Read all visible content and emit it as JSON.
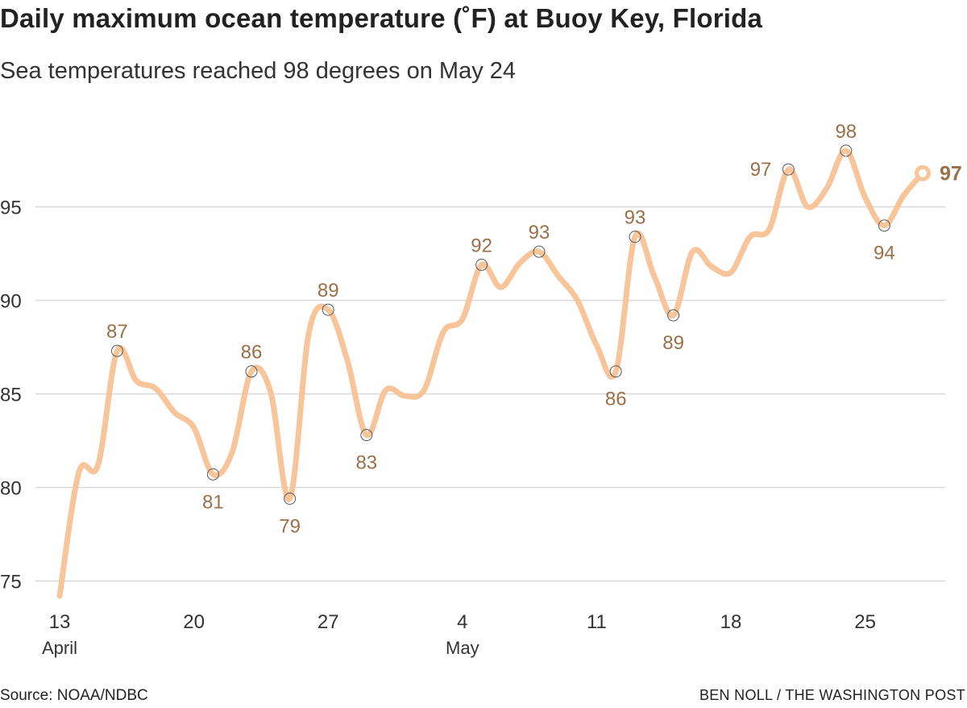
{
  "header": {
    "title": "Daily maximum ocean temperature (˚F) at Buoy Key, Florida",
    "subtitle": "Sea temperatures reached 98 degrees on May 24"
  },
  "footer": {
    "source": "Source: NOAA/NDBC",
    "credit": "BEN NOLL / THE WASHINGTON POST"
  },
  "colors": {
    "line": "#f8c49a",
    "label": "#9a7048",
    "grid": "#d9d9d9"
  },
  "chart_data": {
    "type": "line",
    "title": "Daily maximum ocean temperature (˚F) at Buoy Key, Florida",
    "subtitle": "Sea temperatures reached 98 degrees on May 24",
    "ylim": [
      73.5,
      99.5
    ],
    "xlim": [
      "2024-04-13",
      "2024-05-30"
    ],
    "yticks": [
      75,
      80,
      85,
      90,
      95
    ],
    "xticks": [
      {
        "date": "2024-04-13",
        "label": "13",
        "sublabel": "April"
      },
      {
        "date": "2024-04-20",
        "label": "20",
        "sublabel": ""
      },
      {
        "date": "2024-04-27",
        "label": "27",
        "sublabel": ""
      },
      {
        "date": "2024-05-04",
        "label": "4",
        "sublabel": "May"
      },
      {
        "date": "2024-05-11",
        "label": "11",
        "sublabel": ""
      },
      {
        "date": "2024-05-18",
        "label": "18",
        "sublabel": ""
      },
      {
        "date": "2024-05-25",
        "label": "25",
        "sublabel": ""
      }
    ],
    "grid": true,
    "points": [
      {
        "x": "2024-04-13",
        "y": 74.2
      },
      {
        "x": "2024-04-14",
        "y": 80.8
      },
      {
        "x": "2024-04-15",
        "y": 81.2
      },
      {
        "x": "2024-04-16",
        "y": 87.3,
        "label": "87",
        "pos": "above"
      },
      {
        "x": "2024-04-17",
        "y": 85.7
      },
      {
        "x": "2024-04-18",
        "y": 85.3
      },
      {
        "x": "2024-04-19",
        "y": 84.0
      },
      {
        "x": "2024-04-20",
        "y": 83.2
      },
      {
        "x": "2024-04-21",
        "y": 80.7,
        "label": "81",
        "pos": "below"
      },
      {
        "x": "2024-04-22",
        "y": 81.9
      },
      {
        "x": "2024-04-23",
        "y": 86.2,
        "label": "86",
        "pos": "above"
      },
      {
        "x": "2024-04-24",
        "y": 85.1
      },
      {
        "x": "2024-04-25",
        "y": 79.4,
        "label": "79",
        "pos": "below"
      },
      {
        "x": "2024-04-26",
        "y": 88.3
      },
      {
        "x": "2024-04-27",
        "y": 89.5,
        "label": "89",
        "pos": "above"
      },
      {
        "x": "2024-04-28",
        "y": 86.8
      },
      {
        "x": "2024-04-29",
        "y": 82.8,
        "label": "83",
        "pos": "below"
      },
      {
        "x": "2024-04-30",
        "y": 85.2
      },
      {
        "x": "2024-05-01",
        "y": 84.9
      },
      {
        "x": "2024-05-02",
        "y": 85.2
      },
      {
        "x": "2024-05-03",
        "y": 88.3
      },
      {
        "x": "2024-05-04",
        "y": 89.0
      },
      {
        "x": "2024-05-05",
        "y": 91.9,
        "label": "92",
        "pos": "above"
      },
      {
        "x": "2024-05-06",
        "y": 90.7
      },
      {
        "x": "2024-05-07",
        "y": 92.0
      },
      {
        "x": "2024-05-08",
        "y": 92.6,
        "label": "93",
        "pos": "above"
      },
      {
        "x": "2024-05-09",
        "y": 91.3
      },
      {
        "x": "2024-05-10",
        "y": 90.0
      },
      {
        "x": "2024-05-11",
        "y": 87.6
      },
      {
        "x": "2024-05-12",
        "y": 86.2,
        "label": "86",
        "pos": "below"
      },
      {
        "x": "2024-05-13",
        "y": 93.4,
        "label": "93",
        "pos": "above"
      },
      {
        "x": "2024-05-14",
        "y": 91.3
      },
      {
        "x": "2024-05-15",
        "y": 89.2,
        "label": "89",
        "pos": "below"
      },
      {
        "x": "2024-05-16",
        "y": 92.6
      },
      {
        "x": "2024-05-17",
        "y": 91.8
      },
      {
        "x": "2024-05-18",
        "y": 91.5
      },
      {
        "x": "2024-05-19",
        "y": 93.4
      },
      {
        "x": "2024-05-20",
        "y": 93.8
      },
      {
        "x": "2024-05-21",
        "y": 97.0,
        "label": "97",
        "pos": "left"
      },
      {
        "x": "2024-05-22",
        "y": 95.0
      },
      {
        "x": "2024-05-23",
        "y": 96.0
      },
      {
        "x": "2024-05-24",
        "y": 98.0,
        "label": "98",
        "pos": "above"
      },
      {
        "x": "2024-05-25",
        "y": 95.5
      },
      {
        "x": "2024-05-26",
        "y": 94.0,
        "label": "94",
        "pos": "below"
      },
      {
        "x": "2024-05-27",
        "y": 95.6
      },
      {
        "x": "2024-05-28",
        "y": 96.8,
        "label": "97",
        "pos": "end"
      }
    ]
  }
}
